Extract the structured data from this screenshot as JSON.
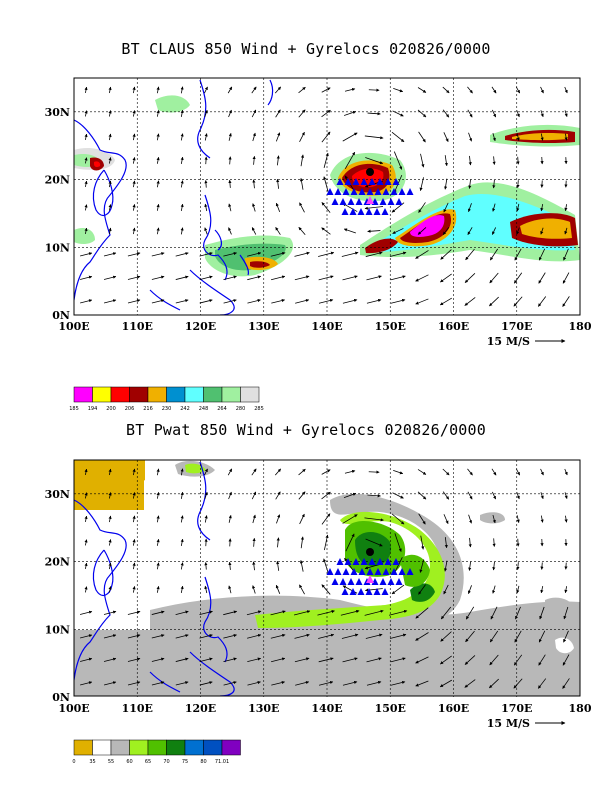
{
  "panels": [
    {
      "title": "BT CLAUS 850 Wind + Gyrelocs 020826/0000",
      "lon_ticks": [
        "100E",
        "110E",
        "120E",
        "130E",
        "140E",
        "150E",
        "160E",
        "170E",
        "180"
      ],
      "lat_ticks": [
        "30N",
        "20N",
        "10N",
        "0N"
      ],
      "ref_vector": "15 M/S",
      "legend": {
        "colors": [
          "#ff00ff",
          "#ffff00",
          "#ff0000",
          "#a00000",
          "#f0b000",
          "#0090d0",
          "#60ffff",
          "#50c070",
          "#a0f0a0",
          "#e0e0e0"
        ],
        "labels": [
          "185",
          "194",
          "200",
          "206",
          "216",
          "230",
          "242",
          "248",
          "264",
          "280",
          "285"
        ]
      }
    },
    {
      "title": "BT Pwat 850 Wind + Gyrelocs 020826/0000",
      "lon_ticks": [
        "100E",
        "110E",
        "120E",
        "130E",
        "140E",
        "150E",
        "160E",
        "170E",
        "180"
      ],
      "lat_ticks": [
        "30N",
        "20N",
        "10N",
        "0N"
      ],
      "ref_vector": "15 M/S",
      "legend": {
        "colors": [
          "#e0b000",
          "#ffffff",
          "#b8b8b8",
          "#a0f020",
          "#50c000",
          "#108010",
          "#0070d0",
          "#0050c0",
          "#8000c0"
        ],
        "labels": [
          "0",
          "35",
          "55",
          "60",
          "65",
          "70",
          "75",
          "80",
          "71.01"
        ]
      }
    }
  ]
}
